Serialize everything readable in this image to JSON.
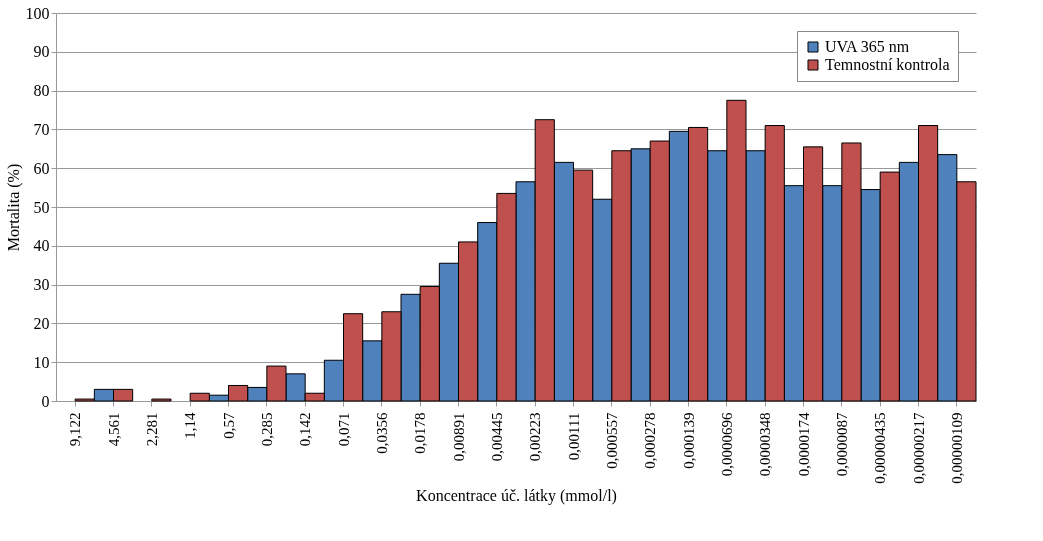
{
  "chart_data": {
    "type": "bar",
    "xlabel": "Koncentrace úč. látky (mmol/l)",
    "ylabel": "Mortalita (%)",
    "categories": [
      "9,122",
      "4,561",
      "2,281",
      "1,14",
      "0,57",
      "0,285",
      "0,142",
      "0,071",
      "0,0356",
      "0,0178",
      "0,00891",
      "0,00445",
      "0,00223",
      "0,00111",
      "0,000557",
      "0,000278",
      "0,000139",
      "0,0000696",
      "0,0000348",
      "0,0000174",
      "0,0000087",
      "0,00000435",
      "0,00000217",
      "0,00000109"
    ],
    "series": [
      {
        "name": "UVA 365 nm",
        "color": "#4f81bd",
        "values": [
          0,
          3,
          0,
          0,
          1.5,
          3.5,
          7,
          10.5,
          15.5,
          27.5,
          35.5,
          46,
          56.5,
          61.5,
          52,
          65,
          69.5,
          64.5,
          64.5,
          55.5,
          55.5,
          54.5,
          61.5,
          63.5
        ]
      },
      {
        "name": "Temnostní kontrola",
        "color": "#c0504d",
        "values": [
          0.5,
          3,
          0.5,
          2,
          4,
          9,
          2,
          22.5,
          23,
          29.5,
          41,
          53.5,
          72.5,
          59.5,
          64.5,
          67,
          70.5,
          77.5,
          71,
          65.5,
          66.5,
          59,
          71,
          56.5
        ]
      }
    ],
    "ylim": [
      0,
      100
    ],
    "yticks": [
      0,
      10,
      20,
      30,
      40,
      50,
      60,
      70,
      80,
      90,
      100
    ],
    "grid": "y",
    "legend": "top right"
  }
}
